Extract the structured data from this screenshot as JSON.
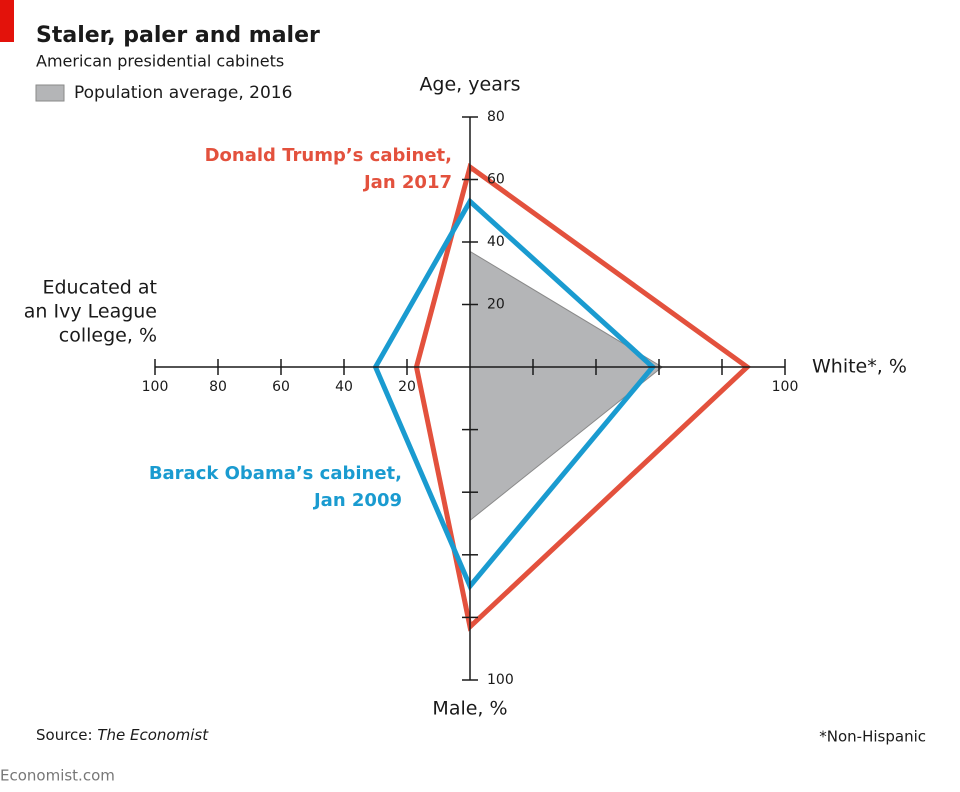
{
  "chart_data": {
    "type": "radar",
    "title": "Staler, paler and maler",
    "subtitle": "American presidential cabinets",
    "source_label": "Source:",
    "source": "The Economist",
    "footnote": "*Non-Hispanic",
    "brand": "Economist.com",
    "axes": [
      {
        "label": [
          "Age, years"
        ],
        "lim": [
          0,
          80
        ],
        "ticks": [
          20,
          40,
          60,
          80
        ]
      },
      {
        "label": [
          "White*, %"
        ],
        "lim": [
          0,
          100
        ],
        "ticks": [
          {
            "value": 20,
            "label": null
          },
          {
            "value": 40,
            "label": null
          },
          {
            "value": 60,
            "label": null
          },
          {
            "value": 80,
            "label": null
          },
          100
        ]
      },
      {
        "label": [
          "Male, %"
        ],
        "lim": [
          0,
          100
        ],
        "ticks": [
          {
            "value": 20,
            "label": null
          },
          {
            "value": 40,
            "label": null
          },
          {
            "value": 60,
            "label": null
          },
          {
            "value": 80,
            "label": null
          },
          100
        ]
      },
      {
        "label": [
          "Educated at",
          "an Ivy League",
          "college, %"
        ],
        "lim": [
          0,
          100
        ],
        "ticks": [
          20,
          40,
          60,
          80,
          100
        ]
      }
    ],
    "series": [
      {
        "name": "Population average, 2016",
        "color": "#b4b5b7",
        "filled": true,
        "values": [
          37,
          61,
          49,
          0
        ]
      },
      {
        "name": "Donald Trump’s cabinet, Jan 2017",
        "color": "#e3513d",
        "filled": false,
        "values": [
          64,
          88,
          83,
          17
        ]
      },
      {
        "name": "Barack Obama’s cabinet, Jan 2009",
        "color": "#1a9bd0",
        "filled": false,
        "values": [
          53,
          58,
          70,
          30
        ]
      }
    ]
  }
}
